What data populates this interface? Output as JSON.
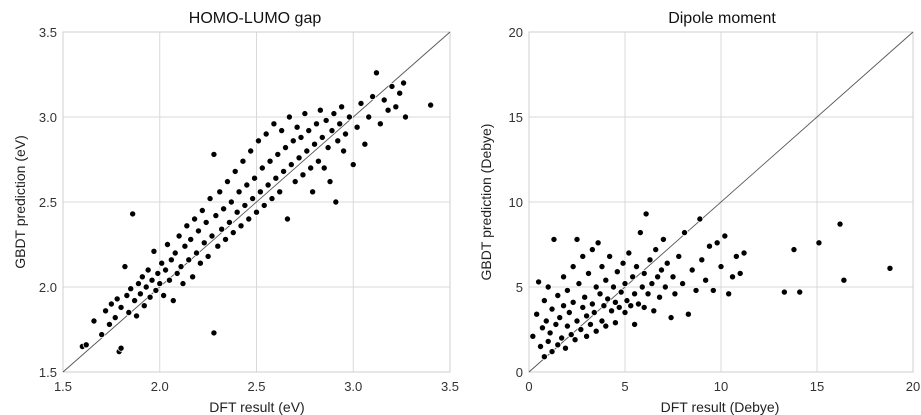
{
  "chart_data": [
    {
      "type": "scatter",
      "title": "HOMO-LUMO gap",
      "xlabel": "DFT result (eV)",
      "ylabel": "GBDT prediction (eV)",
      "xlim": [
        1.5,
        3.5
      ],
      "ylim": [
        1.5,
        3.5
      ],
      "xticks": [
        1.5,
        2.0,
        2.5,
        3.0,
        3.5
      ],
      "yticks": [
        1.5,
        2.0,
        2.5,
        3.0,
        3.5
      ],
      "tick_labels_x": [
        "1.5",
        "2.0",
        "2.5",
        "3.0",
        "3.5"
      ],
      "tick_labels_y": [
        "1.5",
        "2.0",
        "2.5",
        "3.0",
        "3.5"
      ],
      "grid": true,
      "reference_line": "y = x",
      "color": "#000000",
      "points": [
        [
          1.6,
          1.65
        ],
        [
          1.62,
          1.66
        ],
        [
          1.66,
          1.8
        ],
        [
          1.7,
          1.72
        ],
        [
          1.72,
          1.86
        ],
        [
          1.74,
          1.78
        ],
        [
          1.75,
          1.9
        ],
        [
          1.77,
          1.82
        ],
        [
          1.78,
          1.93
        ],
        [
          1.79,
          1.62
        ],
        [
          1.8,
          1.64
        ],
        [
          1.8,
          1.88
        ],
        [
          1.82,
          2.12
        ],
        [
          1.83,
          1.95
        ],
        [
          1.84,
          1.85
        ],
        [
          1.85,
          1.99
        ],
        [
          1.86,
          2.43
        ],
        [
          1.87,
          1.92
        ],
        [
          1.88,
          1.83
        ],
        [
          1.89,
          2.02
        ],
        [
          1.9,
          1.96
        ],
        [
          1.91,
          2.06
        ],
        [
          1.92,
          1.89
        ],
        [
          1.93,
          2.0
        ],
        [
          1.94,
          2.1
        ],
        [
          1.95,
          1.94
        ],
        [
          1.96,
          2.04
        ],
        [
          1.97,
          2.21
        ],
        [
          1.98,
          1.98
        ],
        [
          1.99,
          2.08
        ],
        [
          2.0,
          2.02
        ],
        [
          2.01,
          2.14
        ],
        [
          2.02,
          1.95
        ],
        [
          2.03,
          2.1
        ],
        [
          2.04,
          2.25
        ],
        [
          2.05,
          2.04
        ],
        [
          2.06,
          2.16
        ],
        [
          2.07,
          1.92
        ],
        [
          2.08,
          2.2
        ],
        [
          2.09,
          2.08
        ],
        [
          2.1,
          2.3
        ],
        [
          2.11,
          2.12
        ],
        [
          2.12,
          2.02
        ],
        [
          2.13,
          2.24
        ],
        [
          2.14,
          2.36
        ],
        [
          2.15,
          2.16
        ],
        [
          2.16,
          2.28
        ],
        [
          2.17,
          2.06
        ],
        [
          2.18,
          2.4
        ],
        [
          2.19,
          2.2
        ],
        [
          2.2,
          2.33
        ],
        [
          2.21,
          2.14
        ],
        [
          2.22,
          2.45
        ],
        [
          2.23,
          2.26
        ],
        [
          2.24,
          2.38
        ],
        [
          2.25,
          2.18
        ],
        [
          2.26,
          2.52
        ],
        [
          2.27,
          2.3
        ],
        [
          2.28,
          2.78
        ],
        [
          2.28,
          1.73
        ],
        [
          2.29,
          2.42
        ],
        [
          2.3,
          2.24
        ],
        [
          2.31,
          2.56
        ],
        [
          2.32,
          2.34
        ],
        [
          2.33,
          2.46
        ],
        [
          2.34,
          2.28
        ],
        [
          2.35,
          2.62
        ],
        [
          2.36,
          2.38
        ],
        [
          2.37,
          2.5
        ],
        [
          2.38,
          2.32
        ],
        [
          2.39,
          2.68
        ],
        [
          2.4,
          2.44
        ],
        [
          2.41,
          2.56
        ],
        [
          2.42,
          2.36
        ],
        [
          2.43,
          2.74
        ],
        [
          2.44,
          2.48
        ],
        [
          2.45,
          2.6
        ],
        [
          2.46,
          2.4
        ],
        [
          2.47,
          2.8
        ],
        [
          2.48,
          2.52
        ],
        [
          2.49,
          2.64
        ],
        [
          2.5,
          2.44
        ],
        [
          2.51,
          2.86
        ],
        [
          2.52,
          2.56
        ],
        [
          2.53,
          2.7
        ],
        [
          2.54,
          2.48
        ],
        [
          2.55,
          2.9
        ],
        [
          2.56,
          2.6
        ],
        [
          2.57,
          2.74
        ],
        [
          2.58,
          2.52
        ],
        [
          2.59,
          2.96
        ],
        [
          2.6,
          2.64
        ],
        [
          2.61,
          2.78
        ],
        [
          2.62,
          2.56
        ],
        [
          2.63,
          2.92
        ],
        [
          2.64,
          2.68
        ],
        [
          2.65,
          2.82
        ],
        [
          2.66,
          2.4
        ],
        [
          2.67,
          3.0
        ],
        [
          2.68,
          2.72
        ],
        [
          2.69,
          2.86
        ],
        [
          2.7,
          2.62
        ],
        [
          2.71,
          2.94
        ],
        [
          2.72,
          2.76
        ],
        [
          2.73,
          2.88
        ],
        [
          2.74,
          2.66
        ],
        [
          2.75,
          3.02
        ],
        [
          2.76,
          2.8
        ],
        [
          2.77,
          2.92
        ],
        [
          2.78,
          2.7
        ],
        [
          2.79,
          2.56
        ],
        [
          2.8,
          2.84
        ],
        [
          2.81,
          2.96
        ],
        [
          2.82,
          2.74
        ],
        [
          2.83,
          3.04
        ],
        [
          2.84,
          2.88
        ],
        [
          2.85,
          2.7
        ],
        [
          2.86,
          2.98
        ],
        [
          2.87,
          2.82
        ],
        [
          2.88,
          2.62
        ],
        [
          2.89,
          2.92
        ],
        [
          2.9,
          3.02
        ],
        [
          2.91,
          2.5
        ],
        [
          2.92,
          2.86
        ],
        [
          2.93,
          2.96
        ],
        [
          2.94,
          3.06
        ],
        [
          2.95,
          2.8
        ],
        [
          2.96,
          2.9
        ],
        [
          2.98,
          3.0
        ],
        [
          3.0,
          2.72
        ],
        [
          3.02,
          2.94
        ],
        [
          3.04,
          3.08
        ],
        [
          3.06,
          2.84
        ],
        [
          3.08,
          3.0
        ],
        [
          3.1,
          3.12
        ],
        [
          3.12,
          3.26
        ],
        [
          3.14,
          2.96
        ],
        [
          3.16,
          3.1
        ],
        [
          3.18,
          3.04
        ],
        [
          3.2,
          3.18
        ],
        [
          3.22,
          3.06
        ],
        [
          3.24,
          3.14
        ],
        [
          3.26,
          3.2
        ],
        [
          3.27,
          3.0
        ],
        [
          3.4,
          3.07
        ]
      ]
    },
    {
      "type": "scatter",
      "title": "Dipole moment",
      "xlabel": "DFT result (Debye)",
      "ylabel": "GBDT prediction (Debye)",
      "xlim": [
        0,
        20
      ],
      "ylim": [
        0,
        20
      ],
      "xticks": [
        0,
        5,
        10,
        15,
        20
      ],
      "yticks": [
        0,
        5,
        10,
        15,
        20
      ],
      "tick_labels_x": [
        "0",
        "5",
        "10",
        "15",
        "20"
      ],
      "tick_labels_y": [
        "0",
        "5",
        "10",
        "15",
        "20"
      ],
      "grid": true,
      "reference_line": "y = x",
      "color": "#000000",
      "points": [
        [
          0.2,
          2.1
        ],
        [
          0.4,
          3.4
        ],
        [
          0.5,
          5.3
        ],
        [
          0.6,
          1.5
        ],
        [
          0.7,
          2.6
        ],
        [
          0.8,
          4.2
        ],
        [
          0.8,
          0.9
        ],
        [
          0.9,
          3.0
        ],
        [
          1.0,
          1.8
        ],
        [
          1.0,
          5.0
        ],
        [
          1.1,
          2.3
        ],
        [
          1.2,
          3.7
        ],
        [
          1.2,
          1.2
        ],
        [
          1.3,
          7.8
        ],
        [
          1.4,
          2.8
        ],
        [
          1.5,
          4.5
        ],
        [
          1.5,
          1.6
        ],
        [
          1.6,
          3.2
        ],
        [
          1.7,
          2.0
        ],
        [
          1.8,
          5.6
        ],
        [
          1.8,
          3.9
        ],
        [
          1.9,
          1.4
        ],
        [
          2.0,
          2.7
        ],
        [
          2.0,
          4.8
        ],
        [
          2.1,
          3.5
        ],
        [
          2.2,
          2.2
        ],
        [
          2.3,
          6.2
        ],
        [
          2.3,
          4.1
        ],
        [
          2.4,
          1.9
        ],
        [
          2.5,
          3.0
        ],
        [
          2.5,
          7.8
        ],
        [
          2.6,
          5.2
        ],
        [
          2.7,
          2.5
        ],
        [
          2.8,
          3.8
        ],
        [
          2.8,
          6.8
        ],
        [
          2.9,
          4.4
        ],
        [
          3.0,
          2.1
        ],
        [
          3.0,
          3.3
        ],
        [
          3.1,
          5.8
        ],
        [
          3.2,
          2.8
        ],
        [
          3.3,
          4.0
        ],
        [
          3.3,
          7.2
        ],
        [
          3.4,
          3.5
        ],
        [
          3.5,
          5.0
        ],
        [
          3.5,
          2.4
        ],
        [
          3.6,
          7.6
        ],
        [
          3.7,
          4.6
        ],
        [
          3.8,
          3.0
        ],
        [
          3.8,
          6.2
        ],
        [
          3.9,
          3.9
        ],
        [
          4.0,
          5.4
        ],
        [
          4.0,
          2.7
        ],
        [
          4.1,
          4.3
        ],
        [
          4.2,
          6.8
        ],
        [
          4.3,
          3.6
        ],
        [
          4.4,
          5.0
        ],
        [
          4.5,
          4.1
        ],
        [
          4.5,
          2.9
        ],
        [
          4.6,
          5.9
        ],
        [
          4.7,
          3.8
        ],
        [
          4.8,
          4.7
        ],
        [
          4.9,
          6.4
        ],
        [
          5.0,
          3.5
        ],
        [
          5.0,
          5.2
        ],
        [
          5.1,
          4.2
        ],
        [
          5.2,
          7.0
        ],
        [
          5.3,
          3.9
        ],
        [
          5.4,
          5.6
        ],
        [
          5.5,
          4.6
        ],
        [
          5.5,
          2.8
        ],
        [
          5.6,
          6.2
        ],
        [
          5.7,
          4.0
        ],
        [
          5.8,
          8.2
        ],
        [
          5.9,
          5.0
        ],
        [
          6.0,
          3.8
        ],
        [
          6.0,
          5.8
        ],
        [
          6.1,
          9.3
        ],
        [
          6.2,
          4.6
        ],
        [
          6.3,
          6.6
        ],
        [
          6.4,
          5.2
        ],
        [
          6.5,
          3.6
        ],
        [
          6.6,
          7.2
        ],
        [
          6.7,
          5.6
        ],
        [
          6.8,
          4.4
        ],
        [
          6.9,
          6.0
        ],
        [
          7.0,
          7.8
        ],
        [
          7.1,
          5.0
        ],
        [
          7.2,
          6.4
        ],
        [
          7.4,
          3.2
        ],
        [
          7.5,
          5.6
        ],
        [
          7.6,
          4.6
        ],
        [
          7.8,
          6.8
        ],
        [
          8.0,
          5.2
        ],
        [
          8.1,
          8.2
        ],
        [
          8.3,
          3.4
        ],
        [
          8.5,
          6.0
        ],
        [
          8.7,
          4.8
        ],
        [
          8.9,
          9.0
        ],
        [
          9.0,
          6.6
        ],
        [
          9.2,
          5.4
        ],
        [
          9.4,
          7.4
        ],
        [
          9.6,
          4.8
        ],
        [
          9.8,
          7.6
        ],
        [
          10.0,
          6.2
        ],
        [
          10.2,
          8.0
        ],
        [
          10.4,
          4.6
        ],
        [
          10.6,
          5.6
        ],
        [
          10.8,
          6.8
        ],
        [
          11.0,
          5.8
        ],
        [
          11.2,
          7.0
        ],
        [
          13.3,
          4.7
        ],
        [
          13.8,
          7.2
        ],
        [
          14.1,
          4.7
        ],
        [
          15.1,
          7.6
        ],
        [
          16.2,
          8.7
        ],
        [
          16.4,
          5.4
        ],
        [
          18.8,
          6.1
        ]
      ]
    }
  ]
}
